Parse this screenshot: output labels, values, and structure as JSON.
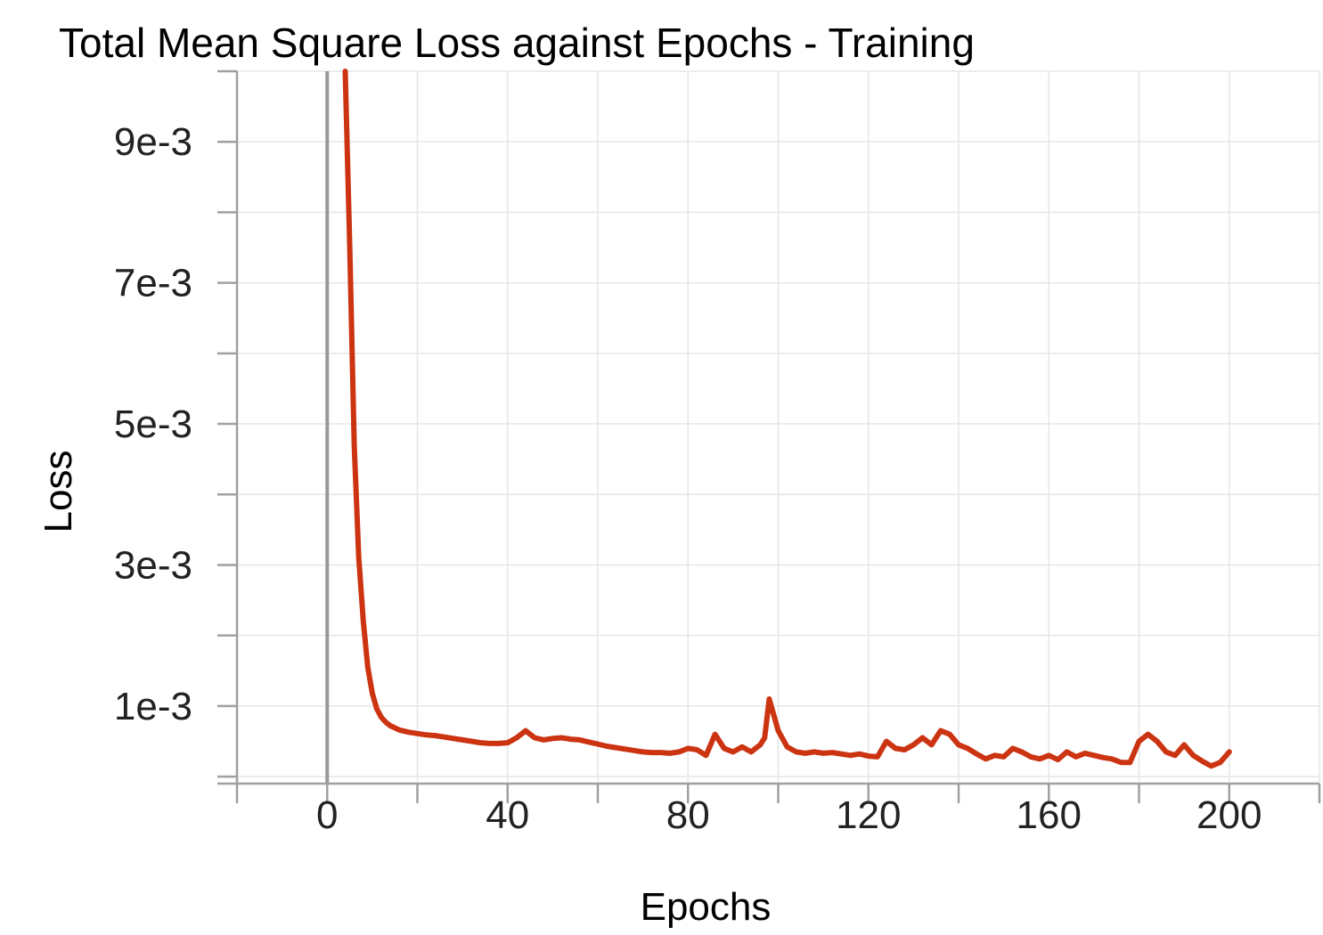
{
  "chart_data": {
    "type": "line",
    "title": "Total Mean Square Loss against Epochs - Training",
    "xlabel": "Epochs",
    "ylabel": "Loss",
    "xlim": [
      -20,
      220
    ],
    "ylim": [
      -0.0001,
      0.01
    ],
    "x_ticks": [
      0,
      40,
      80,
      120,
      160,
      200
    ],
    "x_tick_labels": [
      "0",
      "40",
      "80",
      "120",
      "160",
      "200"
    ],
    "x_minor_ticks": [
      -20,
      20,
      60,
      100,
      140,
      180,
      220
    ],
    "y_ticks": [
      0.001,
      0.003,
      0.005,
      0.007,
      0.009
    ],
    "y_tick_labels": [
      "1e-3",
      "3e-3",
      "5e-3",
      "7e-3",
      "9e-3"
    ],
    "y_minor_ticks": [
      0,
      0.002,
      0.004,
      0.006,
      0.008,
      0.01
    ],
    "grid": true,
    "legend": "none",
    "series": [
      {
        "color": "#cc3311",
        "x": [
          4,
          5,
          6,
          7,
          8,
          9,
          10,
          11,
          12,
          13,
          14,
          15,
          16,
          18,
          20,
          22,
          24,
          26,
          28,
          30,
          32,
          34,
          36,
          38,
          40,
          42,
          44,
          46,
          48,
          50,
          52,
          54,
          56,
          58,
          60,
          62,
          64,
          66,
          68,
          70,
          72,
          74,
          76,
          78,
          80,
          82,
          84,
          86,
          88,
          90,
          92,
          94,
          96,
          97,
          98,
          100,
          102,
          104,
          106,
          108,
          110,
          112,
          114,
          116,
          118,
          120,
          122,
          124,
          126,
          128,
          130,
          132,
          134,
          136,
          138,
          140,
          142,
          144,
          146,
          148,
          150,
          152,
          154,
          156,
          158,
          160,
          162,
          164,
          166,
          168,
          170,
          172,
          174,
          176,
          178,
          180,
          182,
          184,
          186,
          188,
          190,
          192,
          194,
          196,
          198,
          200
        ],
        "y": [
          0.01,
          0.0075,
          0.0047,
          0.0031,
          0.0022,
          0.00155,
          0.00118,
          0.00096,
          0.00084,
          0.00077,
          0.00072,
          0.00069,
          0.00066,
          0.00063,
          0.00061,
          0.00059,
          0.00058,
          0.00056,
          0.00054,
          0.00052,
          0.0005,
          0.00048,
          0.00047,
          0.00047,
          0.00048,
          0.00055,
          0.00065,
          0.00055,
          0.00052,
          0.00054,
          0.00055,
          0.00053,
          0.00052,
          0.00049,
          0.00046,
          0.00043,
          0.00041,
          0.00039,
          0.00037,
          0.00035,
          0.00034,
          0.00034,
          0.00033,
          0.00035,
          0.0004,
          0.00038,
          0.0003,
          0.0006,
          0.0004,
          0.00035,
          0.00042,
          0.00035,
          0.00045,
          0.00055,
          0.0011,
          0.00065,
          0.00042,
          0.00035,
          0.00033,
          0.00035,
          0.00033,
          0.00034,
          0.00032,
          0.0003,
          0.00032,
          0.00029,
          0.00028,
          0.0005,
          0.0004,
          0.00038,
          0.00045,
          0.00055,
          0.00045,
          0.00065,
          0.0006,
          0.00045,
          0.0004,
          0.00032,
          0.00025,
          0.0003,
          0.00028,
          0.0004,
          0.00035,
          0.00028,
          0.00025,
          0.0003,
          0.00024,
          0.00035,
          0.00028,
          0.00033,
          0.0003,
          0.00027,
          0.00025,
          0.0002,
          0.0002,
          0.0005,
          0.0006,
          0.0005,
          0.00035,
          0.0003,
          0.00045,
          0.0003,
          0.00022,
          0.00015,
          0.0002,
          0.00035
        ]
      }
    ]
  }
}
